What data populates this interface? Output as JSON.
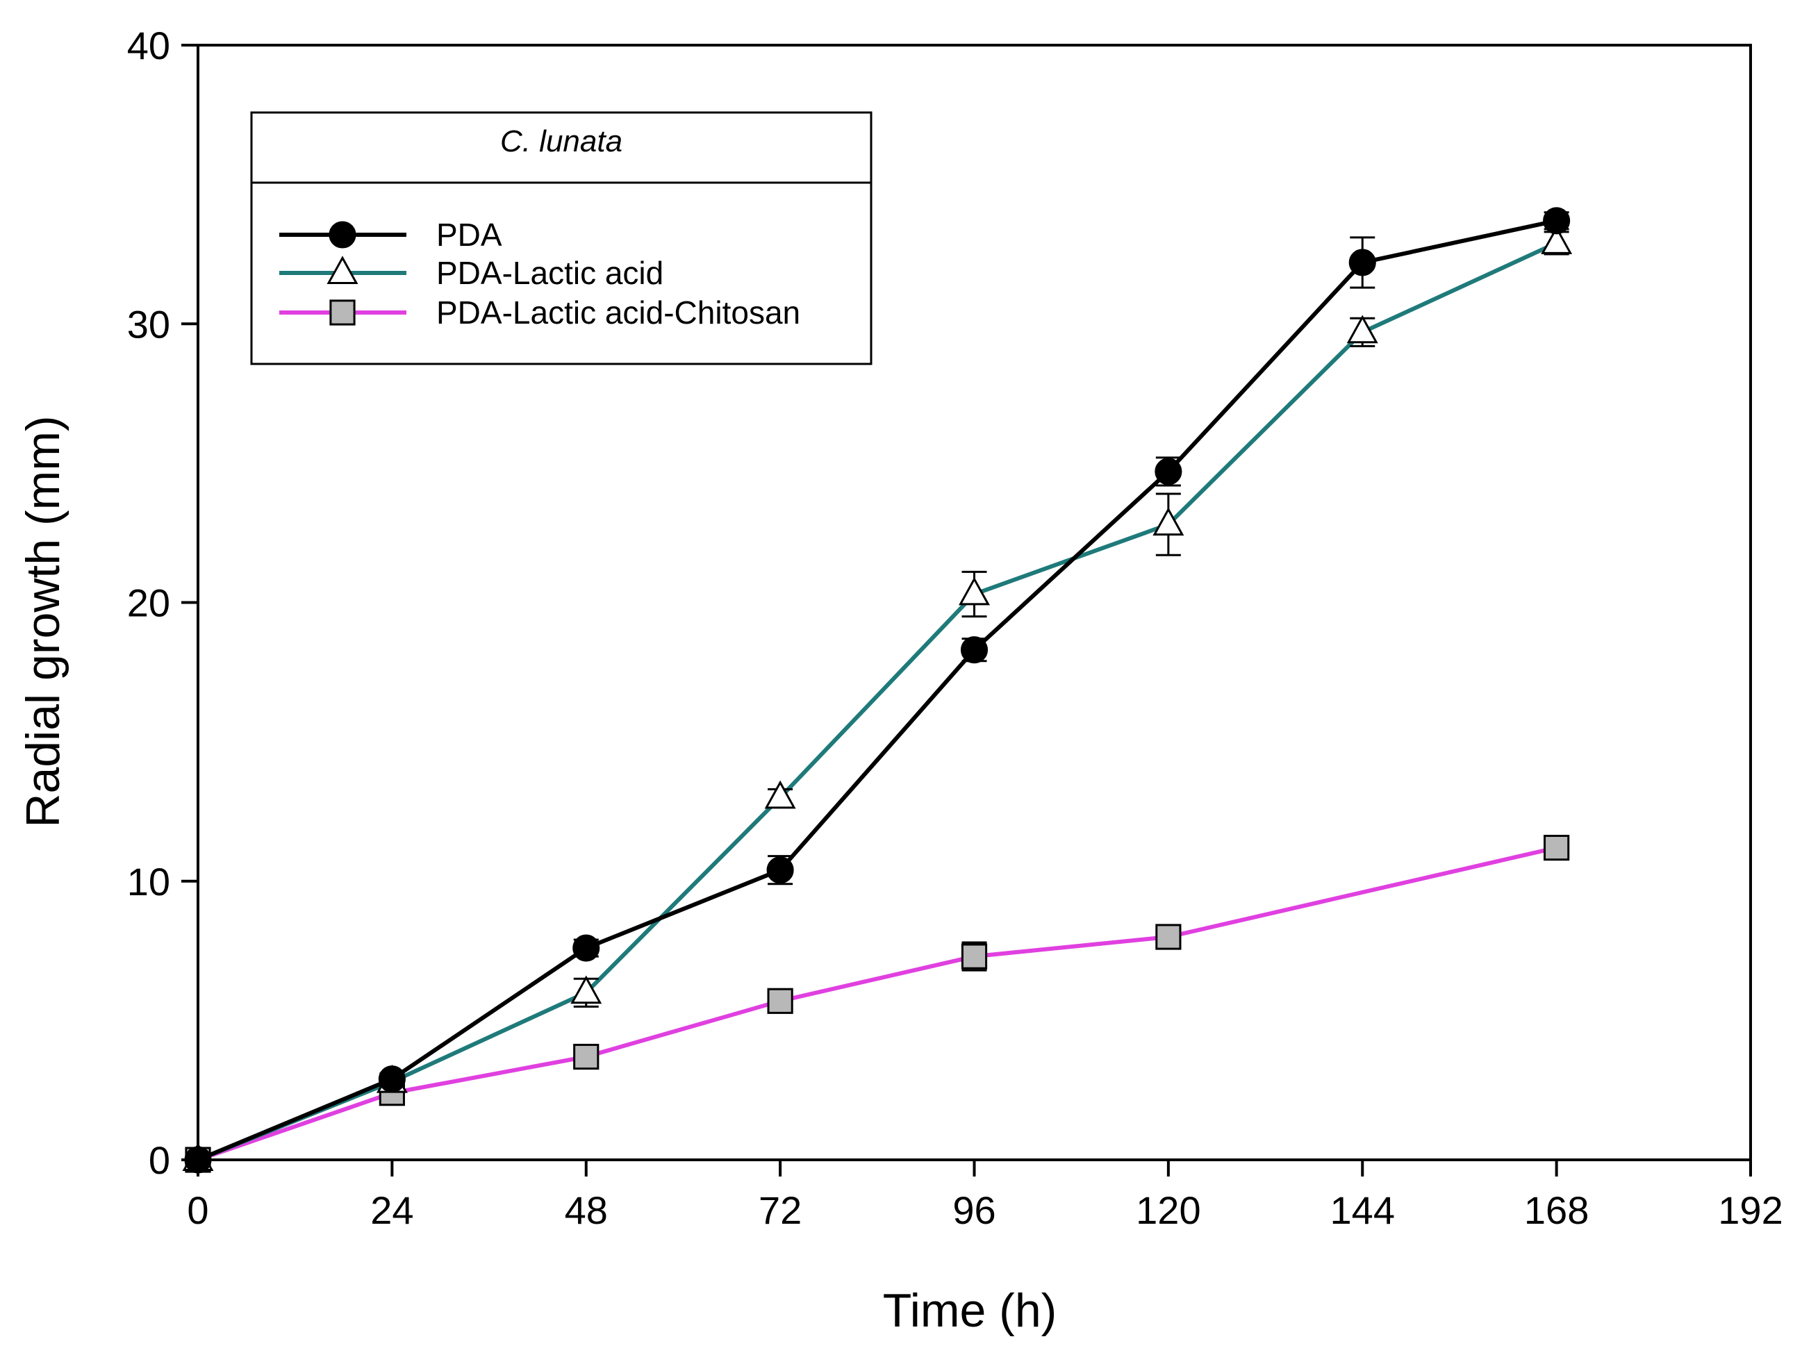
{
  "chart_data": {
    "type": "line",
    "title": "",
    "xlabel": "Time (h)",
    "ylabel": "Radial growth (mm)",
    "xlim": [
      0,
      192
    ],
    "ylim": [
      0,
      40
    ],
    "xticks": [
      0,
      24,
      48,
      72,
      96,
      120,
      144,
      168,
      192
    ],
    "yticks": [
      0,
      10,
      20,
      30,
      40
    ],
    "grid": false,
    "legend": {
      "title": "C. lunata",
      "placement": "top-left"
    },
    "x": [
      0,
      24,
      48,
      72,
      96,
      120,
      144,
      168
    ],
    "series": [
      {
        "name": "PDA",
        "color": "#000000",
        "marker": "filled-circle",
        "values": [
          0,
          2.9,
          7.6,
          10.4,
          18.3,
          24.7,
          32.2,
          33.7
        ],
        "errors": [
          0,
          0.2,
          0.3,
          0.5,
          0.4,
          0.5,
          0.9,
          0.3
        ]
      },
      {
        "name": "PDA-Lactic acid",
        "color": "#1f7a7a",
        "marker": "open-triangle",
        "values": [
          0,
          2.8,
          6.0,
          13.0,
          20.3,
          22.8,
          29.7,
          32.9
        ],
        "errors": [
          0,
          0.2,
          0.5,
          0.3,
          0.8,
          1.1,
          0.5,
          0.4
        ]
      },
      {
        "name": "PDA-Lactic acid-Chitosan",
        "color": "#e040e0",
        "marker": "gray-square",
        "values": [
          0,
          2.4,
          3.7,
          5.7,
          7.3,
          8.0,
          null,
          11.2
        ],
        "errors": [
          0,
          0.2,
          0.2,
          0.2,
          0.5,
          0.3,
          null,
          0.3
        ]
      }
    ]
  }
}
